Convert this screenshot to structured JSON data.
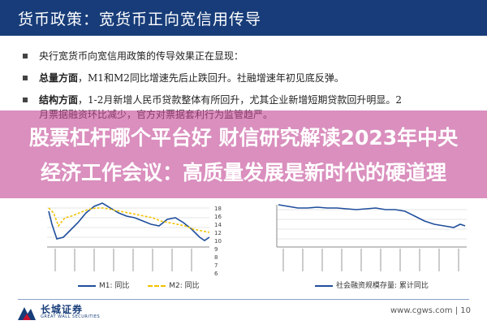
{
  "header": {
    "title": "货币政策：宽货币正向宽信用传导"
  },
  "bullets": [
    {
      "bold": "",
      "text": "央行宽货币向宽信用政策的传导效果正在显现：",
      "cont": ""
    },
    {
      "bold": "总量方面",
      "text": "，M1和M2同比增速先后止跌回升。社融增速年初见底反弹。",
      "cont": ""
    },
    {
      "bold": "结构方面",
      "text": "，1-2月新增人民币贷款整体有所回升，尤其企业新增短期贷款回升明显。2",
      "cont": "月票据融资环比减少，官方对票据套利行为监管趋严。"
    }
  ],
  "overlay": {
    "line1": "股票杠杆哪个平台好 财信研究解读2023年中央",
    "line2": "经济工作会议：高质量发展是新时代的硬道理"
  },
  "left_chart": {
    "right_axis_ticks": [
      "18",
      "16",
      "14",
      "12",
      "10",
      "9",
      "8",
      "7",
      "6"
    ],
    "legend": [
      {
        "name": "M1: 同比",
        "color": "#1f4e9c"
      },
      {
        "name": "M2: 同比",
        "color": "#f2c200"
      }
    ]
  },
  "right_chart": {
    "legend": [
      {
        "name": "社会融资规模存量: 累计同比",
        "color": "#1f4e9c"
      }
    ]
  },
  "footer": {
    "logo_name": "长城证券",
    "logo_sub": "GREAT WALL SECURITIES",
    "right_text": "www.cgws.com | 10"
  },
  "colors": {
    "header": "#173c79",
    "overlay": "#c44a96",
    "series_blue": "#1f4e9c",
    "series_yellow": "#f2c200"
  }
}
